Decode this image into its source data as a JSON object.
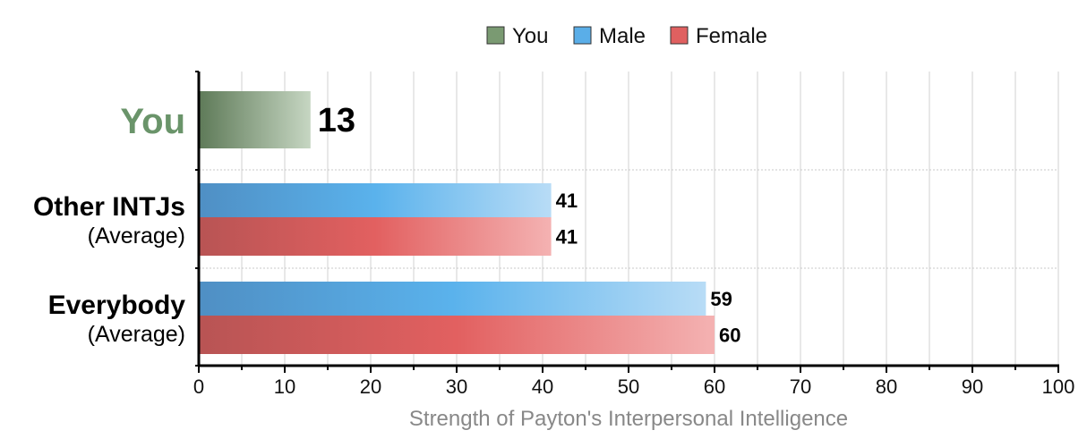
{
  "legend": [
    {
      "label": "You",
      "color": "#7a9a72"
    },
    {
      "label": "Male",
      "color": "#5aaee8"
    },
    {
      "label": "Female",
      "color": "#e06060"
    }
  ],
  "chart_data": {
    "type": "bar",
    "orientation": "horizontal",
    "xlabel": "Strength of Payton's Interpersonal Intelligence",
    "xlim": [
      0,
      100
    ],
    "xticks": [
      0,
      10,
      20,
      30,
      40,
      50,
      60,
      70,
      80,
      90,
      100
    ],
    "grid": true,
    "legend_position": "top",
    "categories": [
      {
        "label": "You",
        "sublabel": ""
      },
      {
        "label": "Other INTJs",
        "sublabel": "(Average)"
      },
      {
        "label": "Everybody",
        "sublabel": "(Average)"
      }
    ],
    "series": [
      {
        "name": "You",
        "values": [
          13,
          null,
          null
        ]
      },
      {
        "name": "Male",
        "values": [
          null,
          41,
          59
        ]
      },
      {
        "name": "Female",
        "values": [
          null,
          41,
          60
        ]
      }
    ]
  }
}
